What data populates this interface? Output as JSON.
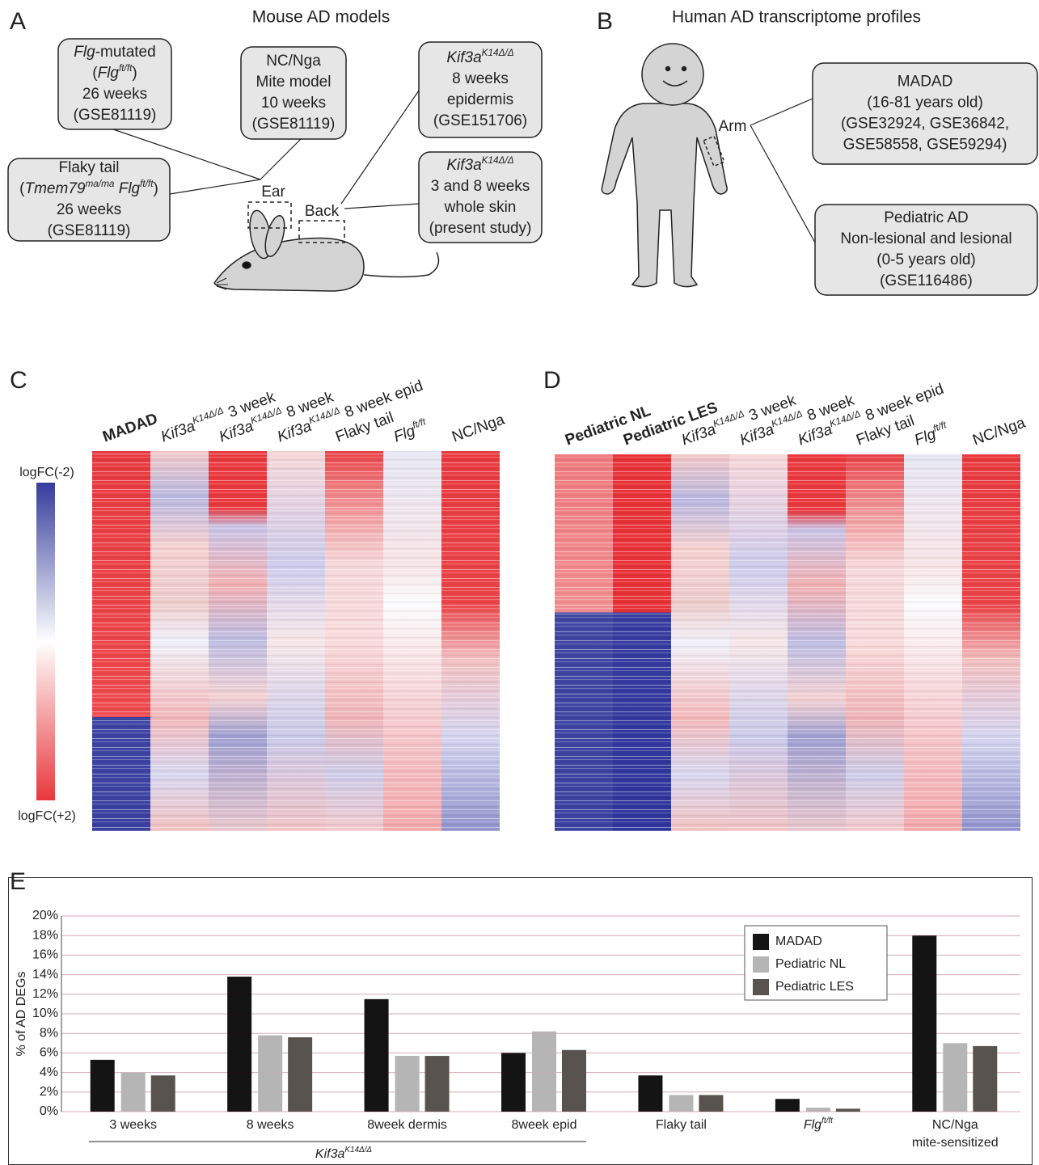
{
  "panel_a": {
    "label": "A",
    "title": "Mouse AD models",
    "boxes": [
      {
        "lines": [
          [
            {
              "text": "Flg",
              "style": "i"
            },
            "-mutated"
          ],
          [
            "(",
            {
              "text": "Flg",
              "style": "i"
            },
            {
              "text": "ft/ft",
              "style": "isup"
            },
            ")"
          ],
          "26 weeks",
          "(GSE81119)"
        ]
      },
      {
        "lines": [
          "NC/Nga",
          "Mite model",
          "10 weeks",
          "(GSE81119)"
        ]
      },
      {
        "lines": [
          "Flaky tail",
          [
            "(",
            {
              "text": "Tmem79",
              "style": "i"
            },
            {
              "text": "ma/ma",
              "style": "isup"
            },
            {
              "text": " Flg",
              "style": "i"
            },
            {
              "text": "ft/ft",
              "style": "isup"
            },
            ")"
          ],
          "26 weeks",
          "(GSE81119)"
        ]
      },
      {
        "lines": [
          [
            {
              "text": "Kif3a",
              "style": "i"
            },
            {
              "text": "K14Δ/Δ",
              "style": "isup"
            }
          ],
          "8 weeks",
          "epidermis",
          "(GSE151706)"
        ]
      },
      {
        "lines": [
          [
            {
              "text": "Kif3a",
              "style": "i"
            },
            {
              "text": "K14Δ/Δ",
              "style": "isup"
            }
          ],
          "3 and 8 weeks",
          "whole skin",
          "(present study)"
        ]
      }
    ],
    "ear": "Ear",
    "back": "Back"
  },
  "panel_b": {
    "label": "B",
    "title": "Human AD transcriptome profiles",
    "arm": "Arm",
    "boxes": [
      {
        "lines": [
          "MADAD",
          "(16-81 years old)",
          "(GSE32924, GSE36842,",
          "GSE58558, GSE59294)"
        ]
      },
      {
        "lines": [
          "Pediatric AD",
          "Non-lesional and lesional",
          "(0-5 years old)",
          "(GSE116486)"
        ]
      }
    ]
  },
  "panel_c": {
    "label": "C",
    "colorbar": {
      "top": "logFC(-2)",
      "bottom": "logFC(+2)"
    },
    "columns": [
      [
        {
          "text": "MADAD",
          "style": "b"
        }
      ],
      [
        {
          "text": "Kif3a",
          "style": "i"
        },
        {
          "text": "K14Δ/Δ",
          "style": "isup"
        },
        " 3 week"
      ],
      [
        {
          "text": "Kif3a",
          "style": "i"
        },
        {
          "text": "K14Δ/Δ",
          "style": "isup"
        },
        " 8 week"
      ],
      [
        {
          "text": "Kif3a",
          "style": "i"
        },
        {
          "text": "K14Δ/Δ",
          "style": "isup"
        },
        " 8 week epid"
      ],
      "Flaky tail",
      [
        {
          "text": "Flg",
          "style": "i"
        },
        {
          "text": "ft/ft",
          "style": "isup"
        }
      ],
      "NC/Nga"
    ]
  },
  "panel_d": {
    "label": "D",
    "columns": [
      [
        {
          "text": "Pediatric NL",
          "style": "b"
        }
      ],
      [
        {
          "text": "Pediatric LES",
          "style": "b"
        }
      ],
      [
        {
          "text": "Kif3a",
          "style": "i"
        },
        {
          "text": "K14Δ/Δ",
          "style": "isup"
        },
        " 3 week"
      ],
      [
        {
          "text": "Kif3a",
          "style": "i"
        },
        {
          "text": "K14Δ/Δ",
          "style": "isup"
        },
        " 8 week"
      ],
      [
        {
          "text": "Kif3a",
          "style": "i"
        },
        {
          "text": "K14Δ/Δ",
          "style": "isup"
        },
        " 8 week epid"
      ],
      "Flaky tail",
      [
        {
          "text": "Flg",
          "style": "i"
        },
        {
          "text": "ft/ft",
          "style": "isup"
        }
      ],
      "NC/Nga"
    ]
  },
  "chart_data": {
    "type": "bar",
    "panel_label": "E",
    "y_label": "% of AD DEGs",
    "categories": [
      "3 weeks",
      "8 weeks",
      "8week dermis",
      "8week epid",
      "Flaky tail",
      [
        {
          "text": "Flg",
          "style": "i"
        },
        {
          "text": "ft/ft",
          "style": "isup"
        }
      ],
      {
        "lines": [
          "NC/Nga",
          "mite-sensitized"
        ]
      }
    ],
    "group_label": [
      {
        "text": "Kif3a",
        "style": "i"
      },
      {
        "text": "K14Δ/Δ",
        "style": "isup"
      }
    ],
    "series": [
      {
        "name": "MADAD",
        "color": "#141414",
        "values": [
          5.3,
          13.8,
          11.5,
          6.0,
          3.7,
          1.3,
          18.0
        ]
      },
      {
        "name": "Pediatric NL",
        "color": "#b5b5b5",
        "values": [
          4.0,
          7.8,
          5.7,
          8.2,
          1.7,
          0.4,
          7.0
        ]
      },
      {
        "name": "Pediatric LES",
        "color": "#58534f",
        "values": [
          3.7,
          7.6,
          5.7,
          6.3,
          1.7,
          0.3,
          6.7
        ]
      }
    ],
    "ylim": [
      0,
      20
    ],
    "yticks": [
      {
        "value": 0,
        "label": "0%"
      },
      {
        "value": 2,
        "label": "2%"
      },
      {
        "value": 4,
        "label": "4%"
      },
      {
        "value": 6,
        "label": "6%"
      },
      {
        "value": 8,
        "label": "8%"
      },
      {
        "value": 10,
        "label": "10%"
      },
      {
        "value": 12,
        "label": "12%"
      },
      {
        "value": 14,
        "label": "14%"
      },
      {
        "value": 16,
        "label": "16%"
      },
      {
        "value": 18,
        "label": "18%"
      },
      {
        "value": 20,
        "label": "20%"
      }
    ],
    "grid": true,
    "legend": "upper right"
  }
}
